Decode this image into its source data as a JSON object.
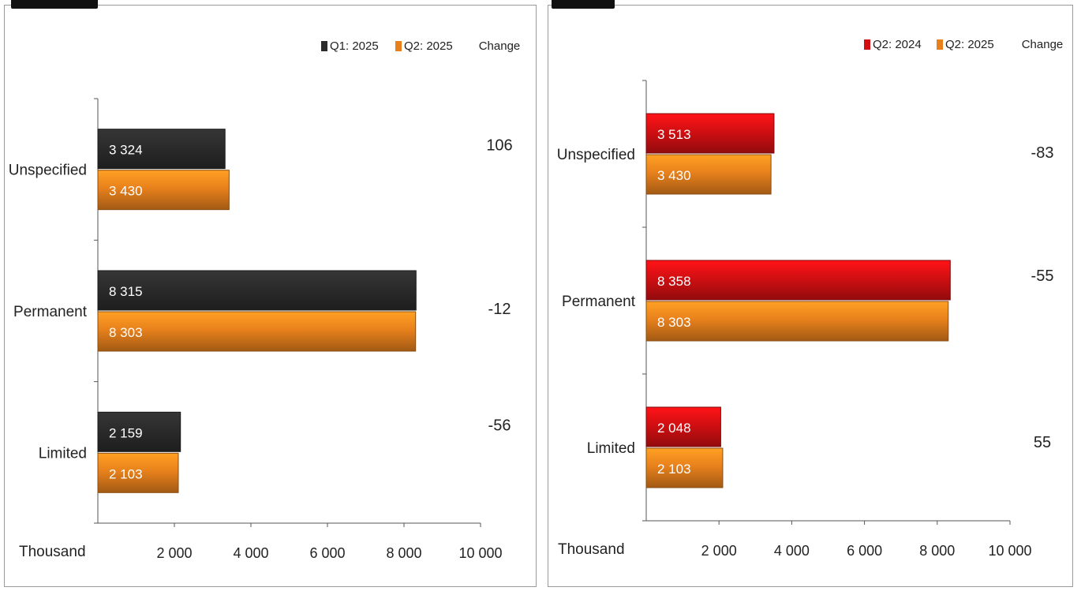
{
  "colors": {
    "q1_2025": "#2b2b2b",
    "q2_2025": "#e8811c",
    "q2_2024": "#d10f12",
    "axis": "#555555"
  },
  "chart_data": [
    {
      "type": "bar",
      "orientation": "horizontal",
      "categories": [
        "Unspecified",
        "Permanent",
        "Limited"
      ],
      "series": [
        {
          "name": "Q1: 2025",
          "values": [
            3324,
            8315,
            2159
          ],
          "color": "#2b2b2b",
          "labels": [
            "3 324",
            "8 315",
            "2 159"
          ]
        },
        {
          "name": "Q2: 2025",
          "values": [
            3430,
            8303,
            2103
          ],
          "color": "#e8811c",
          "labels": [
            "3 430",
            "8 303",
            "2 103"
          ]
        }
      ],
      "change_header": "Change",
      "change": [
        "106",
        "-12",
        "-56"
      ],
      "xlim": [
        0,
        10000
      ],
      "xticks": [
        2000,
        4000,
        6000,
        8000,
        10000
      ],
      "xtick_labels": [
        "2 000",
        "4 000",
        "6 000",
        "8 000",
        "10 000"
      ],
      "xlabel": "Thousand",
      "legend": "top-right"
    },
    {
      "type": "bar",
      "orientation": "horizontal",
      "categories": [
        "Unspecified",
        "Permanent",
        "Limited"
      ],
      "series": [
        {
          "name": "Q2: 2024",
          "values": [
            3513,
            8358,
            2048
          ],
          "color": "#d10f12",
          "labels": [
            "3 513",
            "8 358",
            "2 048"
          ]
        },
        {
          "name": "Q2: 2025",
          "values": [
            3430,
            8303,
            2103
          ],
          "color": "#e8811c",
          "labels": [
            "3 430",
            "8 303",
            "2 103"
          ]
        }
      ],
      "change_header": "Change",
      "change": [
        "-83",
        "-55",
        "55"
      ],
      "xlim": [
        0,
        10000
      ],
      "xticks": [
        2000,
        4000,
        6000,
        8000,
        10000
      ],
      "xtick_labels": [
        "2 000",
        "4 000",
        "6 000",
        "8 000",
        "10 000"
      ],
      "xlabel": "Thousand",
      "legend": "top-right"
    }
  ]
}
